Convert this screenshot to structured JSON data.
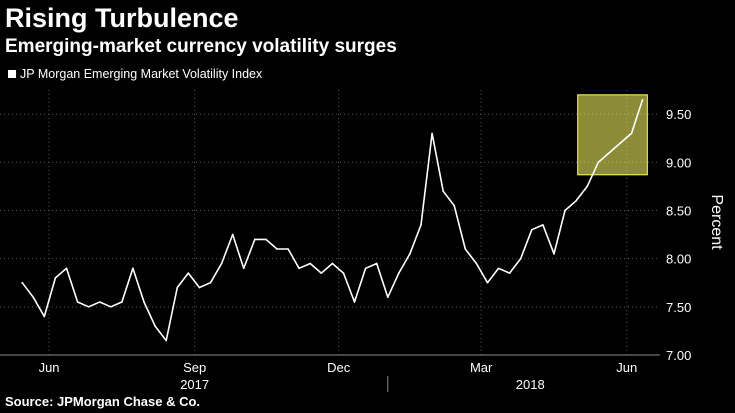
{
  "title": "Rising Turbulence",
  "subtitle": "Emerging-market currency volatility surges",
  "source": "Source: JPMorgan Chase & Co.",
  "chart_data": {
    "type": "line",
    "ylabel": "Percent",
    "ylim": [
      7.0,
      9.75
    ],
    "yticks": [
      "7.00",
      "7.50",
      "8.00",
      "8.50",
      "9.00",
      "9.50"
    ],
    "xticks": [
      "Jun",
      "Sep",
      "Dec",
      "Mar",
      "Jun"
    ],
    "years": [
      "2017",
      "2018"
    ],
    "grid": true,
    "legend_position": "top-left",
    "highlight_box": {
      "x_start": "2018-05-01",
      "x_end": "2018-06-14",
      "y_start": 8.87,
      "y_end": 9.7,
      "color": "#ffff66"
    },
    "series": [
      {
        "name": "JP Morgan Emerging Market Volatility Index",
        "color": "#ffffff",
        "x": [
          "2017-05-15",
          "2017-05-22",
          "2017-05-29",
          "2017-06-05",
          "2017-06-12",
          "2017-06-19",
          "2017-06-26",
          "2017-07-03",
          "2017-07-10",
          "2017-07-17",
          "2017-07-24",
          "2017-07-31",
          "2017-08-07",
          "2017-08-14",
          "2017-08-21",
          "2017-08-28",
          "2017-09-04",
          "2017-09-11",
          "2017-09-18",
          "2017-09-25",
          "2017-10-02",
          "2017-10-09",
          "2017-10-16",
          "2017-10-23",
          "2017-10-30",
          "2017-11-06",
          "2017-11-13",
          "2017-11-20",
          "2017-11-27",
          "2017-12-04",
          "2017-12-11",
          "2017-12-18",
          "2017-12-25",
          "2018-01-01",
          "2018-01-08",
          "2018-01-15",
          "2018-01-22",
          "2018-01-29",
          "2018-02-05",
          "2018-02-12",
          "2018-02-19",
          "2018-02-26",
          "2018-03-05",
          "2018-03-12",
          "2018-03-19",
          "2018-03-26",
          "2018-04-02",
          "2018-04-09",
          "2018-04-16",
          "2018-04-23",
          "2018-04-30",
          "2018-05-07",
          "2018-05-14",
          "2018-05-21",
          "2018-05-28",
          "2018-06-04",
          "2018-06-11"
        ],
        "values": [
          7.75,
          7.6,
          7.4,
          7.8,
          7.9,
          7.55,
          7.5,
          7.55,
          7.5,
          7.55,
          7.9,
          7.55,
          7.3,
          7.15,
          7.7,
          7.85,
          7.7,
          7.75,
          7.95,
          8.25,
          7.9,
          8.2,
          8.2,
          8.1,
          8.1,
          7.9,
          7.95,
          7.85,
          7.95,
          7.85,
          7.55,
          7.9,
          7.95,
          7.6,
          7.85,
          8.05,
          8.35,
          9.3,
          8.7,
          8.55,
          8.1,
          7.95,
          7.75,
          7.9,
          7.85,
          8.0,
          8.3,
          8.35,
          8.05,
          8.5,
          8.6,
          8.75,
          9.0,
          9.1,
          9.2,
          9.3,
          9.65
        ]
      }
    ]
  }
}
